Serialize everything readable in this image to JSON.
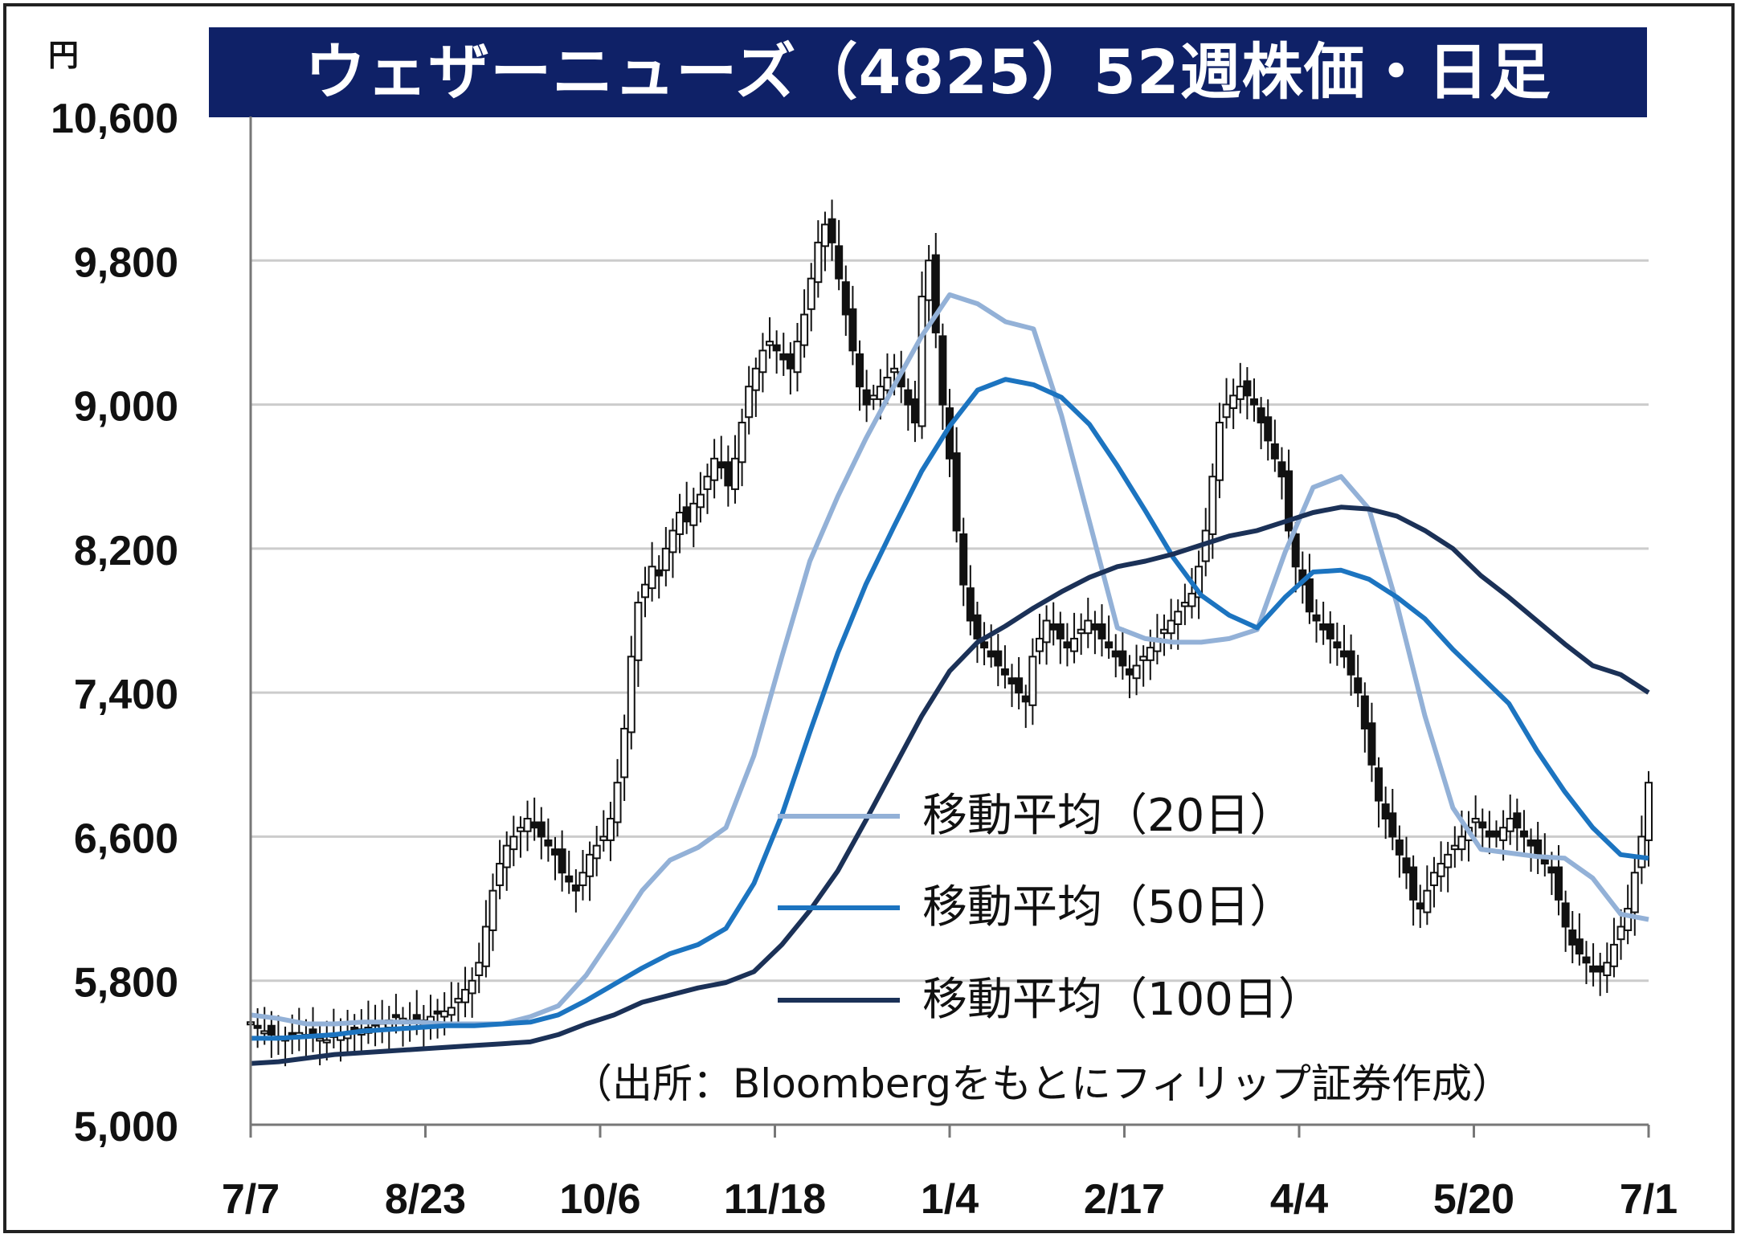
{
  "chart_data": {
    "type": "line",
    "title": "ウェザーニューズ（4825）52週株価・日足",
    "ylabel": "円",
    "ylim": [
      5000,
      10600
    ],
    "y_ticks": [
      "5,000",
      "5,800",
      "6,600",
      "7,400",
      "8,200",
      "9,000",
      "9,800",
      "10,600"
    ],
    "y_tick_values": [
      5000,
      5800,
      6600,
      7400,
      8200,
      9000,
      9800,
      10600
    ],
    "x_ticks": [
      "7/7",
      "8/23",
      "10/6",
      "11/18",
      "1/4",
      "2/17",
      "4/4",
      "5/20",
      "7/1"
    ],
    "grid": true,
    "legend_position": "center-right",
    "source": "（出所：Bloombergをもとにフィリップ証券作成）",
    "candles_note": "daily candlesticks (black/white)",
    "close": [
      5570,
      5540,
      5520,
      5500,
      5490,
      5480,
      5500,
      5510,
      5500,
      5490,
      5480,
      5470,
      5490,
      5500,
      5510,
      5520,
      5530,
      5540,
      5550,
      5560,
      5580,
      5600,
      5590,
      5580,
      5570,
      5580,
      5600,
      5620,
      5630,
      5650,
      5700,
      5750,
      5800,
      5900,
      6100,
      6300,
      6450,
      6550,
      6600,
      6650,
      6700,
      6650,
      6600,
      6550,
      6500,
      6400,
      6350,
      6300,
      6400,
      6500,
      6550,
      6600,
      6700,
      6900,
      7200,
      7600,
      7900,
      8000,
      8100,
      8050,
      8200,
      8300,
      8400,
      8350,
      8450,
      8500,
      8600,
      8700,
      8650,
      8550,
      8700,
      8900,
      9100,
      9200,
      9300,
      9350,
      9300,
      9250,
      9200,
      9350,
      9500,
      9700,
      9900,
      10000,
      9900,
      9700,
      9500,
      9300,
      9100,
      9000,
      9050,
      9100,
      9150,
      9200,
      9100,
      9000,
      8900,
      9600,
      9800,
      9400,
      9000,
      8700,
      8300,
      8000,
      7800,
      7700,
      7650,
      7600,
      7550,
      7500,
      7450,
      7400,
      7350,
      7600,
      7700,
      7800,
      7750,
      7700,
      7650,
      7700,
      7750,
      7800,
      7750,
      7700,
      7650,
      7600,
      7550,
      7500,
      7550,
      7600,
      7650,
      7700,
      7750,
      7800,
      7850,
      7900,
      7950,
      8100,
      8300,
      8600,
      8900,
      9000,
      9050,
      9100,
      9050,
      9000,
      8900,
      8800,
      8700,
      8600,
      8300,
      8100,
      8000,
      7850,
      7800,
      7750,
      7700,
      7650,
      7600,
      7500,
      7400,
      7200,
      7000,
      6800,
      6700,
      6600,
      6500,
      6400,
      6250,
      6200,
      6300,
      6400,
      6450,
      6500,
      6550,
      6600,
      6650,
      6700,
      6650,
      6600,
      6600,
      6650,
      6700,
      6650,
      6600,
      6550,
      6500,
      6450,
      6400,
      6250,
      6100,
      6000,
      5950,
      5900,
      5850,
      5850,
      5900,
      6000,
      6100,
      6200,
      6400,
      6600,
      6900
    ],
    "series": [
      {
        "name": "移動平均（20日）",
        "color": "#93b1d7",
        "values": [
          5610,
          5590,
          5560,
          5560,
          5570,
          5570,
          5570,
          5560,
          5560,
          5560,
          5600,
          5660,
          5830,
          6060,
          6300,
          6470,
          6540,
          6650,
          7050,
          7600,
          8130,
          8490,
          8810,
          9100,
          9380,
          9610,
          9560,
          9460,
          9420,
          8940,
          8350,
          7760,
          7700,
          7680,
          7680,
          7700,
          7750,
          8180,
          8540,
          8600,
          8420,
          7890,
          7270,
          6760,
          6530,
          6510,
          6490,
          6480,
          6370,
          6170,
          6140
        ]
      },
      {
        "name": "移動平均（50日）",
        "color": "#1c74c0",
        "values": [
          5480,
          5480,
          5490,
          5500,
          5520,
          5530,
          5540,
          5550,
          5550,
          5560,
          5570,
          5610,
          5690,
          5780,
          5870,
          5950,
          6000,
          6090,
          6340,
          6720,
          7180,
          7620,
          8000,
          8320,
          8630,
          8880,
          9080,
          9140,
          9110,
          9040,
          8890,
          8660,
          8410,
          8150,
          7940,
          7830,
          7760,
          7930,
          8070,
          8080,
          8030,
          7930,
          7810,
          7640,
          7490,
          7340,
          7080,
          6850,
          6650,
          6500,
          6480
        ]
      },
      {
        "name": "移動平均（100日）",
        "color": "#1b3157",
        "values": [
          5340,
          5350,
          5370,
          5390,
          5400,
          5410,
          5420,
          5430,
          5440,
          5450,
          5460,
          5500,
          5560,
          5610,
          5680,
          5720,
          5760,
          5790,
          5850,
          6000,
          6190,
          6410,
          6690,
          6980,
          7270,
          7520,
          7680,
          7770,
          7870,
          7960,
          8040,
          8100,
          8130,
          8170,
          8220,
          8270,
          8300,
          8350,
          8400,
          8430,
          8420,
          8380,
          8300,
          8200,
          8050,
          7930,
          7800,
          7670,
          7550,
          7500,
          7400
        ]
      }
    ]
  },
  "legend": {
    "item1": "移動平均（20日）",
    "item2": "移動平均（50日）",
    "item3": "移動平均（100日）"
  },
  "colors": {
    "title_bg": "#0f2167",
    "grid": "#cccccc"
  }
}
